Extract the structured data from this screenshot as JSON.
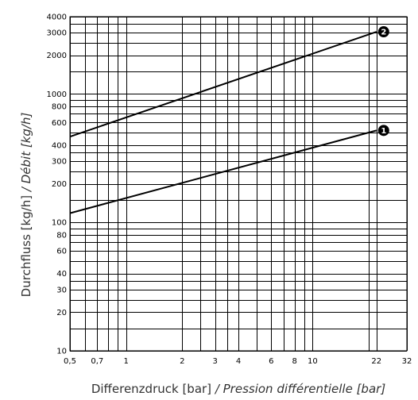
{
  "chart_data": {
    "type": "line",
    "title": "",
    "xlabel": {
      "main": "Differenzdruck [bar]",
      "separator": " / ",
      "alt": "Pression différentielle [bar]"
    },
    "ylabel": {
      "main": "Durchfluss [kg/h]",
      "separator": "  / ",
      "alt": "Débit [kg/h]"
    },
    "x_scale": "log",
    "y_scale": "log",
    "xlim": [
      0.5,
      32
    ],
    "ylim": [
      10,
      4000
    ],
    "grid": true,
    "x_ticks": [
      {
        "value": 0.5,
        "label": "0,5"
      },
      {
        "value": 0.7,
        "label": "0,7"
      },
      {
        "value": 1,
        "label": "1"
      },
      {
        "value": 2,
        "label": "2"
      },
      {
        "value": 3,
        "label": "3"
      },
      {
        "value": 4,
        "label": "4"
      },
      {
        "value": 6,
        "label": "6"
      },
      {
        "value": 8,
        "label": "8"
      },
      {
        "value": 10,
        "label": "10"
      },
      {
        "value": 22,
        "label": "22"
      },
      {
        "value": 32,
        "label": "32"
      }
    ],
    "y_ticks": [
      {
        "value": 10,
        "label": "10"
      },
      {
        "value": 20,
        "label": "20"
      },
      {
        "value": 30,
        "label": "30"
      },
      {
        "value": 40,
        "label": "40"
      },
      {
        "value": 60,
        "label": "60"
      },
      {
        "value": 80,
        "label": "80"
      },
      {
        "value": 100,
        "label": "100"
      },
      {
        "value": 200,
        "label": "200"
      },
      {
        "value": 300,
        "label": "300"
      },
      {
        "value": 400,
        "label": "400"
      },
      {
        "value": 600,
        "label": "600"
      },
      {
        "value": 800,
        "label": "800"
      },
      {
        "value": 1000,
        "label": "1000"
      },
      {
        "value": 2000,
        "label": "2000"
      },
      {
        "value": 3000,
        "label": "3000"
      },
      {
        "value": 4000,
        "label": "4000"
      }
    ],
    "x_grid": [
      0.5,
      0.6,
      0.7,
      0.8,
      0.9,
      1,
      2,
      2.5,
      3,
      3.5,
      4,
      5,
      6,
      7,
      8,
      9,
      10,
      20,
      22,
      32
    ],
    "y_grid": [
      10,
      15,
      20,
      25,
      30,
      35,
      40,
      50,
      60,
      70,
      80,
      90,
      100,
      150,
      200,
      250,
      300,
      350,
      400,
      500,
      600,
      700,
      800,
      900,
      1000,
      1500,
      2000,
      2500,
      3000,
      3500,
      4000
    ],
    "series": [
      {
        "marker": "1",
        "x": [
          0.5,
          22
        ],
        "y": [
          118,
          520
        ]
      },
      {
        "marker": "2",
        "x": [
          0.5,
          22
        ],
        "y": [
          465,
          3050
        ]
      }
    ]
  }
}
